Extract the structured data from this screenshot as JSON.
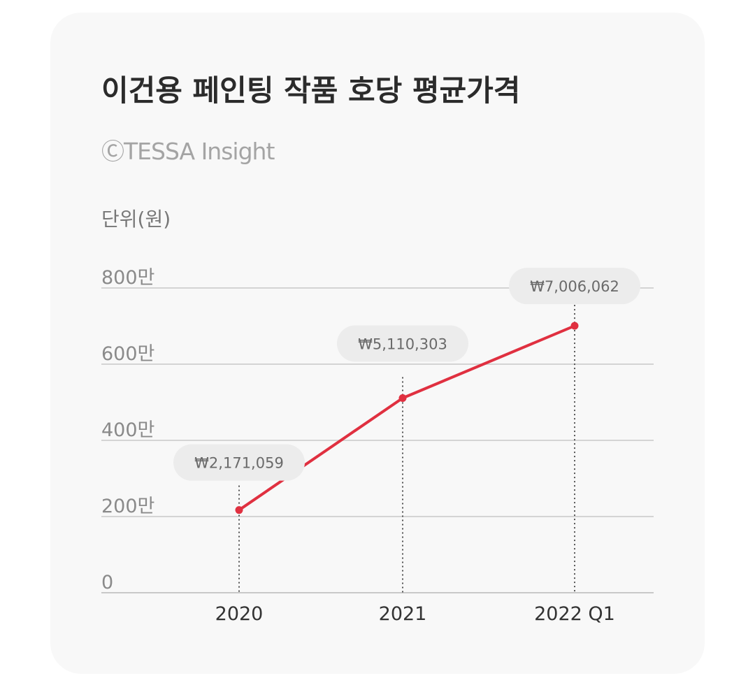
{
  "chart_data": {
    "type": "line",
    "title": "이건용 페인팅 작품 호당 평균가격",
    "subtitle": "ⒸTESSA Insight",
    "unit_label": "단위(원)",
    "categories": [
      "2020",
      "2021",
      "2022 Q1"
    ],
    "series": [
      {
        "values": [
          2171059,
          5110303,
          7006062
        ],
        "data_labels": [
          "₩2,171,059",
          "₩5,110,303",
          "₩7,006,062"
        ],
        "color": "#e03040"
      }
    ],
    "y_ticks": [
      {
        "value": 0,
        "label": "0"
      },
      {
        "value": 2000000,
        "label": "200만"
      },
      {
        "value": 4000000,
        "label": "400만"
      },
      {
        "value": 6000000,
        "label": "600만"
      },
      {
        "value": 8000000,
        "label": "800만"
      }
    ],
    "ylim": [
      0,
      8000000
    ],
    "grid": true,
    "legend": "none"
  }
}
